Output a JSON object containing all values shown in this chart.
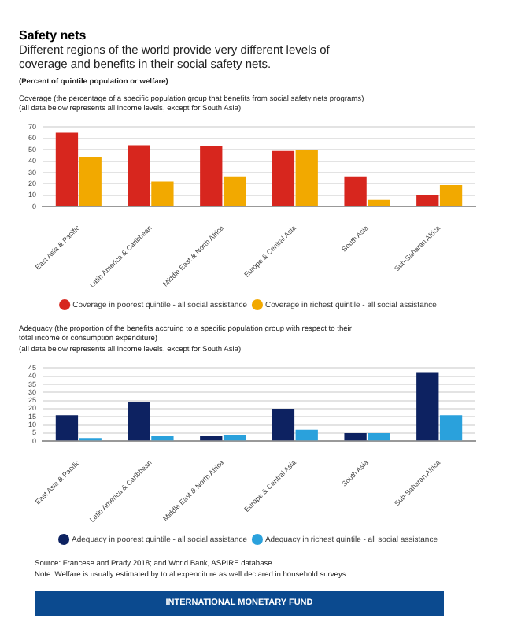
{
  "chart_data": [
    {
      "type": "bar",
      "title": "Safety nets",
      "subtitle": "Different regions of the world provide very different levels of coverage and benefits in their social safety nets.",
      "annotations": [
        "(Percent of quintile population or welfare)",
        "Coverage (the percentage of a specific population group that benefits from social safety nets programs) (all data below represents all income levels, except for South Asia)"
      ],
      "categories": [
        "East Asia & Pacific",
        "Latin America & Caribbean",
        "Middle East & North Africa",
        "Europe & Central Asia",
        "South Asia",
        "Sub-Saharan Africa"
      ],
      "series": [
        {
          "name": "Coverage in poorest quintile - all social assistance",
          "color": "#d7261e",
          "values": [
            65,
            54,
            53,
            49,
            26,
            10
          ]
        },
        {
          "name": "Coverage in richest quintile - all social assistance",
          "color": "#f2a900",
          "values": [
            44,
            22,
            26,
            50,
            6,
            19
          ]
        }
      ],
      "ylim": [
        0,
        70
      ],
      "yticks": [
        0,
        10,
        20,
        30,
        40,
        50,
        60,
        70
      ],
      "grid": "y",
      "legend": "bottom"
    },
    {
      "type": "bar",
      "title": "Adequacy (the proportion of the benefits accruing to a specific population group with respect to their total income or consumption expenditure)",
      "subtitle": "(all data below represents all income levels, except for South Asia)",
      "annotations": [
        "Source: Francese and Prady 2018; and World Bank, ASPIRE database.",
        "Note: Welfare is usually estimated by total expenditure as well declared in household surveys.",
        "INTERNATIONAL MONETARY FUND"
      ],
      "categories": [
        "East Asia & Pacific",
        "Latin America & Caribbean",
        "Middle East & North Africa",
        "Europe & Central Asia",
        "South Asia",
        "Sub-Saharan Africa"
      ],
      "series": [
        {
          "name": "Adequacy in poorest quintile - all social assistance",
          "color": "#0d2261",
          "values": [
            16,
            24,
            3,
            20,
            5,
            42
          ]
        },
        {
          "name": "Adequacy in richest quintile - all social assistance",
          "color": "#2aa1dc",
          "values": [
            2,
            3,
            4,
            7,
            5,
            16
          ]
        }
      ],
      "ylim": [
        0,
        45
      ],
      "yticks": [
        0,
        5,
        10,
        15,
        20,
        25,
        30,
        35,
        40,
        45
      ],
      "grid": "y",
      "legend": "bottom"
    }
  ]
}
